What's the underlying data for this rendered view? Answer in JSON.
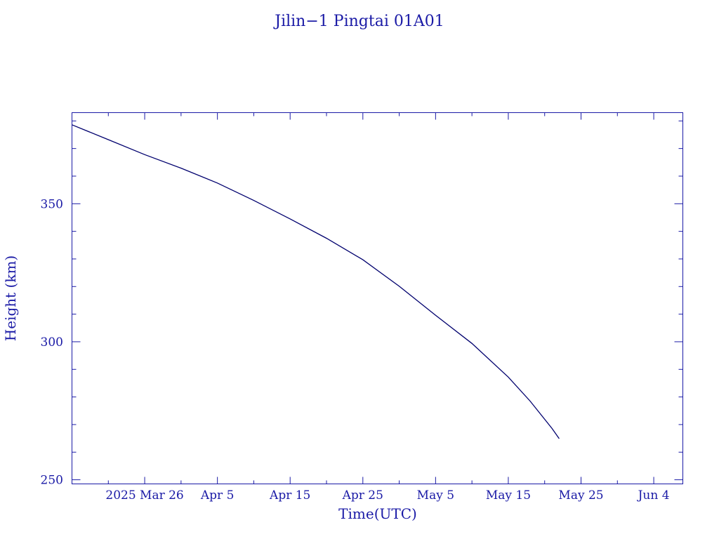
{
  "chart_data": {
    "type": "line",
    "title": "Jilin−1 Pingtai 01A01",
    "xlabel": "Time(UTC)",
    "ylabel": "Height (km)",
    "x_is_date": true,
    "xlim": [
      "2025-03-16",
      "2025-06-08"
    ],
    "ylim": [
      248.5,
      383
    ],
    "x_ticks": [
      {
        "date": "2025-03-26",
        "label": "2025 Mar 26"
      },
      {
        "date": "2025-04-05",
        "label": "Apr  5"
      },
      {
        "date": "2025-04-15",
        "label": "Apr 15"
      },
      {
        "date": "2025-04-25",
        "label": "Apr 25"
      },
      {
        "date": "2025-05-05",
        "label": "May  5"
      },
      {
        "date": "2025-05-15",
        "label": "May 15"
      },
      {
        "date": "2025-05-25",
        "label": "May 25"
      },
      {
        "date": "2025-06-04",
        "label": "Jun  4"
      }
    ],
    "y_ticks": [
      {
        "value": 250,
        "label": "250"
      },
      {
        "value": 300,
        "label": "300"
      },
      {
        "value": 350,
        "label": "350"
      }
    ],
    "grid": false,
    "series": [
      {
        "color": "#00006e",
        "points": [
          [
            "2025-03-16",
            378.6
          ],
          [
            "2025-03-21",
            373.2
          ],
          [
            "2025-03-26",
            367.8
          ],
          [
            "2025-03-31",
            362.9
          ],
          [
            "2025-04-05",
            357.5
          ],
          [
            "2025-04-10",
            351.2
          ],
          [
            "2025-04-15",
            344.5
          ],
          [
            "2025-04-20",
            337.5
          ],
          [
            "2025-04-25",
            329.7
          ],
          [
            "2025-04-30",
            320.1
          ],
          [
            "2025-05-05",
            309.6
          ],
          [
            "2025-05-10",
            299.4
          ],
          [
            "2025-05-15",
            287.2
          ],
          [
            "2025-05-18",
            278.5
          ],
          [
            "2025-05-21",
            268.6
          ],
          [
            "2025-05-22",
            264.9
          ]
        ]
      }
    ]
  }
}
